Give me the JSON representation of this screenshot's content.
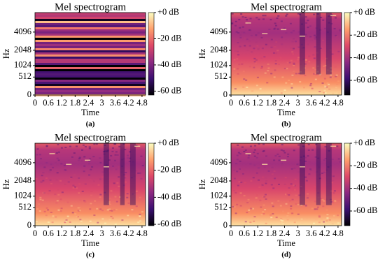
{
  "chart_data": [
    {
      "type": "heatmap",
      "title": "Mel spectrogram",
      "xlabel": "Time",
      "ylabel": "Hz",
      "caption": "(a)",
      "yscale": "mel",
      "xlim": [
        0,
        4.96
      ],
      "xticks": [
        0,
        0.6,
        1.2,
        1.8,
        2.4,
        3,
        3.6,
        4.2,
        4.8
      ],
      "ylim": [
        0,
        8000
      ],
      "yticks": [
        0,
        512,
        1024,
        2048,
        4096
      ],
      "clim": [
        -63,
        0
      ],
      "cticks": [
        {
          "value": 0,
          "label": "+0 dB"
        },
        {
          "value": -20,
          "label": "-20 dB"
        },
        {
          "value": -40,
          "label": "-40 dB"
        },
        {
          "value": -60,
          "label": "-60 dB"
        }
      ],
      "colormap": "magma"
    },
    {
      "type": "heatmap",
      "title": "Mel spectrogram",
      "xlabel": "Time",
      "ylabel": "Hz",
      "caption": "(b)",
      "yscale": "mel",
      "xlim": [
        0,
        4.96
      ],
      "xticks": [
        0,
        0.6,
        1.2,
        1.8,
        2.4,
        3,
        3.6,
        4.2,
        4.8
      ],
      "ylim": [
        0,
        8000
      ],
      "yticks": [
        0,
        512,
        1024,
        2048,
        4096
      ],
      "clim": [
        -73,
        0
      ],
      "cticks": [
        {
          "value": 0,
          "label": "+0 dB"
        },
        {
          "value": -20,
          "label": "-20 dB"
        },
        {
          "value": -40,
          "label": "-40 dB"
        },
        {
          "value": -60,
          "label": "-60 dB"
        }
      ],
      "colormap": "magma"
    },
    {
      "type": "heatmap",
      "title": "Mel spectrogram",
      "xlabel": "Time",
      "ylabel": "Hz",
      "caption": "(c)",
      "yscale": "mel",
      "xlim": [
        0,
        4.96
      ],
      "xticks": [
        0,
        0.6,
        1.2,
        1.8,
        2.4,
        3,
        3.6,
        4.2,
        4.8
      ],
      "ylim": [
        0,
        8000
      ],
      "yticks": [
        0,
        512,
        1024,
        2048,
        4096
      ],
      "clim": [
        -61,
        0
      ],
      "cticks": [
        {
          "value": 0,
          "label": "+0 dB"
        },
        {
          "value": -20,
          "label": "-20 dB"
        },
        {
          "value": -40,
          "label": "-40 dB"
        },
        {
          "value": -60,
          "label": "-60 dB"
        }
      ],
      "colormap": "magma"
    },
    {
      "type": "heatmap",
      "title": "Mel spectrogram",
      "xlabel": "Time",
      "ylabel": "Hz",
      "caption": "(d)",
      "yscale": "mel",
      "xlim": [
        0,
        4.96
      ],
      "xticks": [
        0,
        0.6,
        1.2,
        1.8,
        2.4,
        3,
        3.6,
        4.2,
        4.8
      ],
      "ylim": [
        0,
        8000
      ],
      "yticks": [
        0,
        512,
        1024,
        2048,
        4096
      ],
      "clim": [
        -73,
        0
      ],
      "cticks": [
        {
          "value": 0,
          "label": "+0 dB"
        },
        {
          "value": -20,
          "label": "-20 dB"
        },
        {
          "value": -40,
          "label": "-40 dB"
        },
        {
          "value": -60,
          "label": "-60 dB"
        }
      ],
      "colormap": "magma"
    }
  ]
}
